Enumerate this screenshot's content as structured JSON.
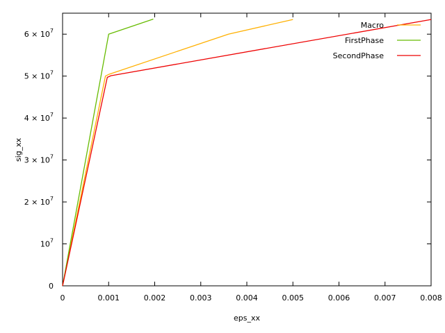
{
  "chart_data": {
    "type": "line",
    "xlabel": "eps_xx",
    "ylabel": "sig_xx",
    "xlim": [
      0,
      0.008
    ],
    "ylim": [
      0,
      65000000
    ],
    "grid": false,
    "legend_position": "top-right",
    "x_ticks": [
      {
        "value": 0,
        "label": "0"
      },
      {
        "value": 0.001,
        "label": "0.001"
      },
      {
        "value": 0.002,
        "label": "0.002"
      },
      {
        "value": 0.003,
        "label": "0.003"
      },
      {
        "value": 0.004,
        "label": "0.004"
      },
      {
        "value": 0.005,
        "label": "0.005"
      },
      {
        "value": 0.006,
        "label": "0.006"
      },
      {
        "value": 0.007,
        "label": "0.007"
      },
      {
        "value": 0.008,
        "label": "0.008"
      }
    ],
    "y_ticks": [
      {
        "value": 0,
        "mantissa": "0",
        "exponent": ""
      },
      {
        "value": 10000000,
        "mantissa": "10",
        "exponent": "7"
      },
      {
        "value": 20000000,
        "mantissa": "2 × 10",
        "exponent": "7"
      },
      {
        "value": 30000000,
        "mantissa": "3 × 10",
        "exponent": "7"
      },
      {
        "value": 40000000,
        "mantissa": "4 × 10",
        "exponent": "7"
      },
      {
        "value": 50000000,
        "mantissa": "5 × 10",
        "exponent": "7"
      },
      {
        "value": 60000000,
        "mantissa": "6 × 10",
        "exponent": "7"
      }
    ],
    "series": [
      {
        "name": "Macro",
        "color": "#ffb000",
        "points": [
          [
            0,
            0
          ],
          [
            0.00093,
            50000000
          ],
          [
            0.001,
            50400000
          ],
          [
            0.0036,
            60000000
          ],
          [
            0.005,
            63500000
          ]
        ]
      },
      {
        "name": "FirstPhase",
        "color": "#66bb00",
        "points": [
          [
            0,
            0
          ],
          [
            0.001,
            60000000
          ],
          [
            0.00197,
            63600000
          ]
        ]
      },
      {
        "name": "SecondPhase",
        "color": "#ee0000",
        "points": [
          [
            0,
            0
          ],
          [
            0.00097,
            49700000
          ],
          [
            0.00105,
            50100000
          ],
          [
            0.008,
            63500000
          ]
        ]
      }
    ]
  }
}
